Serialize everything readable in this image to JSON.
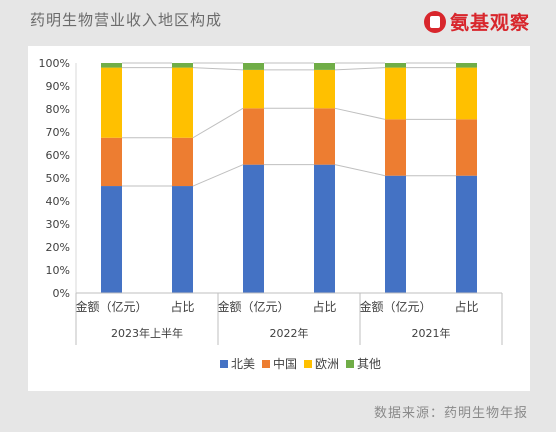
{
  "header": {
    "title": "药明生物营业收入地区构成",
    "logo_text": "氨基观察",
    "logo_color": "#d8262c"
  },
  "footer": {
    "source": "数据来源：药明生物年报"
  },
  "chart_data": {
    "type": "bar",
    "stacked": true,
    "percent_stacked": true,
    "title": "",
    "xlabel": "",
    "ylabel": "",
    "ylim": [
      0,
      100
    ],
    "ytick_labels": [
      "0%",
      "10%",
      "20%",
      "30%",
      "40%",
      "50%",
      "60%",
      "70%",
      "80%",
      "90%",
      "100%"
    ],
    "grid": false,
    "legend_position": "bottom",
    "groups": [
      "2023年上半年",
      "2022年",
      "2021年"
    ],
    "categories": [
      "金额（亿元）",
      "占比",
      "金额（亿元）",
      "占比",
      "金额（亿元）",
      "占比"
    ],
    "category_group": [
      0,
      0,
      1,
      1,
      2,
      2
    ],
    "series": [
      {
        "name": "北美",
        "color": "#4472c4",
        "values": [
          46.5,
          46.5,
          55.8,
          55.8,
          51.0,
          51.0
        ]
      },
      {
        "name": "中国",
        "color": "#ed7d31",
        "values": [
          21.0,
          21.0,
          24.5,
          24.5,
          24.5,
          24.5
        ]
      },
      {
        "name": "欧洲",
        "color": "#ffc000",
        "values": [
          30.5,
          30.5,
          16.7,
          16.7,
          22.5,
          22.5
        ]
      },
      {
        "name": "其他",
        "color": "#70ad47",
        "values": [
          2.0,
          2.0,
          3.0,
          3.0,
          2.0,
          2.0
        ]
      }
    ]
  }
}
